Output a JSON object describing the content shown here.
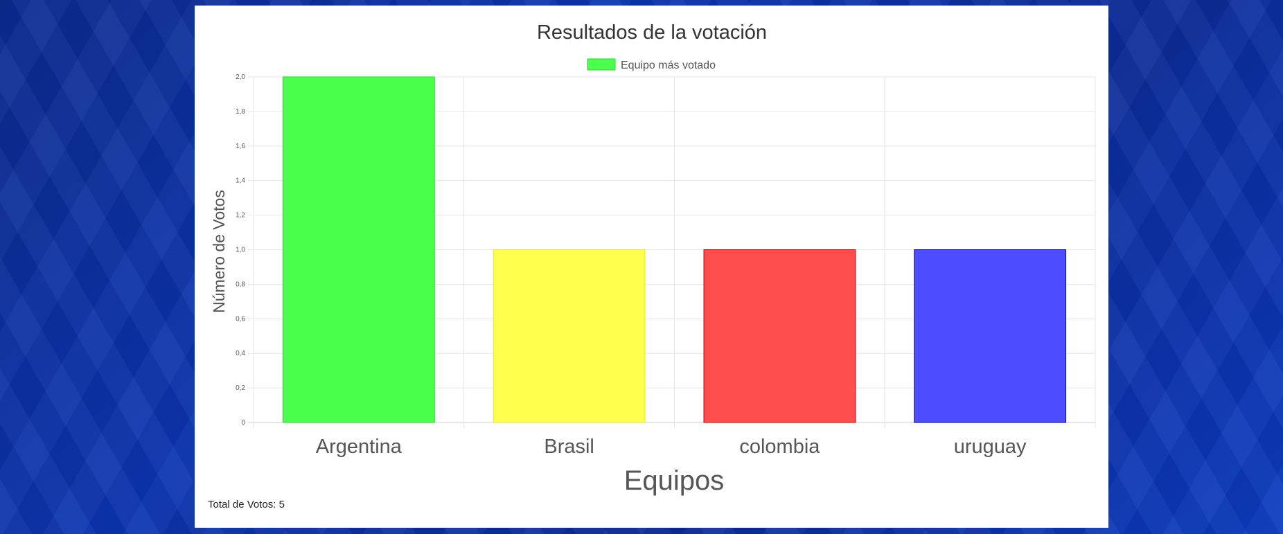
{
  "chart_data": {
    "type": "bar",
    "title": "Resultados de la votación",
    "legend": {
      "label": "Equipo más votado",
      "color": "#4dff4d",
      "position": "top"
    },
    "categories": [
      "Argentina",
      "Brasil",
      "colombia",
      "uruguay"
    ],
    "values": [
      2,
      1,
      1,
      1
    ],
    "bar_colors": [
      "#4dff4d",
      "#ffff4d",
      "#ff4d4d",
      "#4d4dff"
    ],
    "bar_border_colors": [
      "#33cc33",
      "#e6e633",
      "#cc0000",
      "#0000b3"
    ],
    "xlabel": "Equipos",
    "ylabel": "Número de Votos",
    "ylim": [
      0,
      2
    ],
    "yticks": [
      "0",
      "0,2",
      "0,4",
      "0,6",
      "0,8",
      "1,0",
      "1,2",
      "1,4",
      "1,6",
      "1,8",
      "2,0"
    ],
    "grid": true
  },
  "footer": {
    "total_votes": "Total de Votos: 5"
  }
}
